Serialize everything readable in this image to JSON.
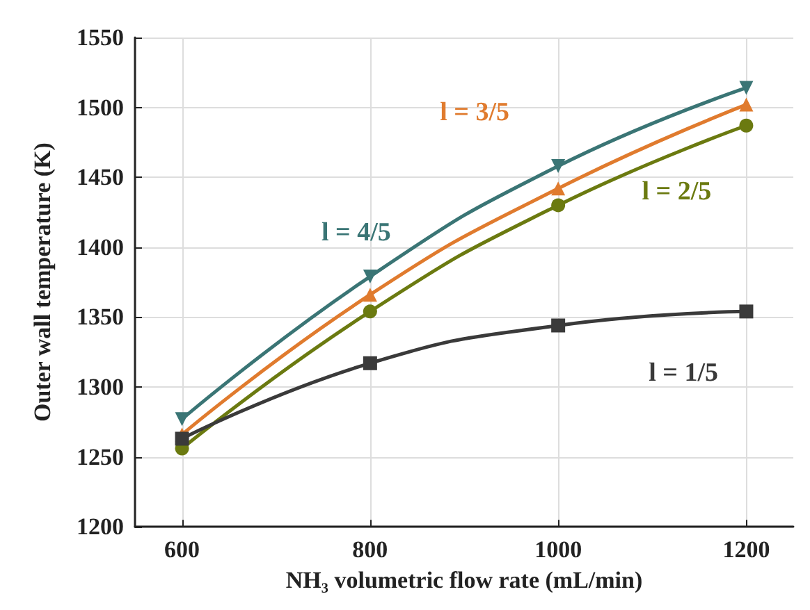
{
  "chart_data": {
    "type": "line",
    "xlabel": "NH₃ volumetric flow rate (mL/min)",
    "ylabel": "Outer wall temperature (K)",
    "x": [
      600,
      800,
      1000,
      1200
    ],
    "series": [
      {
        "name": "l = 1/5",
        "color": "#3a3a3a",
        "marker": "square",
        "values": [
          1263,
          1317,
          1344,
          1354
        ]
      },
      {
        "name": "l = 2/5",
        "color": "#6b7a10",
        "marker": "circle",
        "values": [
          1256,
          1354,
          1430,
          1487
        ]
      },
      {
        "name": "l = 3/5",
        "color": "#e07b2e",
        "marker": "triangle",
        "values": [
          1266,
          1366,
          1442,
          1502
        ]
      },
      {
        "name": "l = 4/5",
        "color": "#3a7575",
        "marker": "triangle-down",
        "values": [
          1277,
          1379,
          1458,
          1514
        ]
      }
    ],
    "xlim": [
      550,
      1250
    ],
    "xticks": [
      600,
      800,
      1000,
      1200
    ],
    "ylim": [
      1200,
      1550
    ],
    "yticks": [
      1200,
      1250,
      1300,
      1350,
      1400,
      1450,
      1500,
      1550
    ],
    "grid": true,
    "legend": false,
    "line_style": "solid"
  }
}
